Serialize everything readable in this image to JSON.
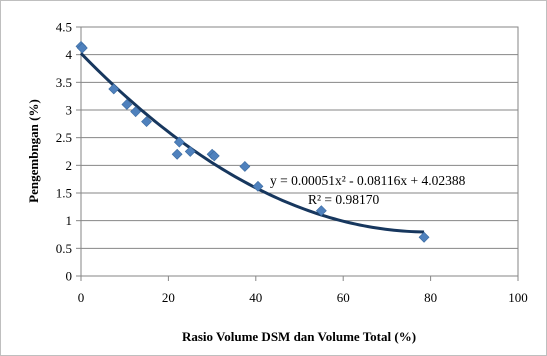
{
  "chart_data": {
    "type": "scatter",
    "xlabel": "Rasio Volume DSM dan Volume Total (%)",
    "ylabel": "Pengembngan (%)",
    "xlim": [
      0,
      100
    ],
    "ylim": [
      0,
      4.5
    ],
    "x_ticks": [
      "0",
      "20",
      "40",
      "60",
      "80",
      "100"
    ],
    "y_ticks": [
      "0",
      "0.5",
      "1",
      "1.5",
      "2",
      "2.5",
      "3",
      "3.5",
      "4",
      "4.5"
    ],
    "grid": "horizontal",
    "marker_color": "#4f81bd",
    "trendline_color": "#17375e",
    "points": [
      {
        "x": 0,
        "y": 4.15
      },
      {
        "x": 0.3,
        "y": 4.12
      },
      {
        "x": 7.5,
        "y": 3.38
      },
      {
        "x": 10.5,
        "y": 3.1
      },
      {
        "x": 12.5,
        "y": 2.97
      },
      {
        "x": 15,
        "y": 2.79
      },
      {
        "x": 22,
        "y": 2.2
      },
      {
        "x": 22.5,
        "y": 2.42
      },
      {
        "x": 25,
        "y": 2.25
      },
      {
        "x": 30,
        "y": 2.2
      },
      {
        "x": 30.5,
        "y": 2.17
      },
      {
        "x": 37.5,
        "y": 1.98
      },
      {
        "x": 40.5,
        "y": 1.62
      },
      {
        "x": 55,
        "y": 1.18
      },
      {
        "x": 78.5,
        "y": 0.7
      }
    ],
    "trendline": {
      "type": "polynomial",
      "coefficients": [
        0.00051,
        -0.08116,
        4.02388
      ],
      "x_range": [
        0,
        78.5
      ]
    },
    "annotations": {
      "equation": "y = 0.00051x² - 0.08116x + 4.02388",
      "r_squared": "R² = 0.98170"
    }
  }
}
